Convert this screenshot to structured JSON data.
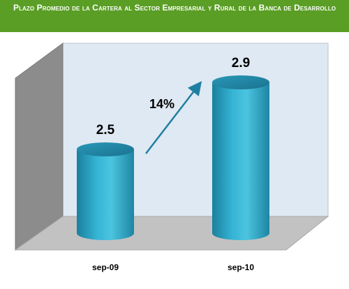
{
  "header": {
    "title": "Plazo Promedio de la Cartera al Sector Empresarial y Rural de la Banca de Desarrollo"
  },
  "colors": {
    "title_bg": "#5a9e25",
    "bar_fill": "#2aa3c4",
    "arrow": "#1f7fa0",
    "back_wall": "#dfe9f3",
    "side_wall": "#8c8c8c",
    "floor": "#c2c2c2"
  },
  "chart_data": {
    "type": "bar",
    "categories": [
      "sep-09",
      "sep-10"
    ],
    "values": [
      2.5,
      2.9
    ],
    "value_labels": [
      "2.5",
      "2.9"
    ],
    "annotation": "14%",
    "title": "Plazo Promedio de la Cartera al Sector Empresarial y Rural de la Banca de Desarrollo",
    "xlabel": "",
    "ylabel": "",
    "grid": false
  }
}
